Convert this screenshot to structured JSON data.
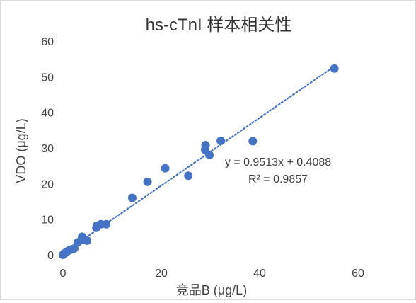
{
  "chart_data": {
    "type": "scatter",
    "title": "hs-cTnI 样本相关性",
    "xlabel": "竞品B (μg/L)",
    "ylabel": "VDO (μg/L)",
    "xlim": [
      0,
      60
    ],
    "ylim": [
      0,
      60
    ],
    "x_ticks": [
      "0",
      "20",
      "40",
      "60"
    ],
    "y_ticks": [
      "0",
      "10",
      "20",
      "30",
      "40",
      "50",
      "60"
    ],
    "grid": false,
    "marker_color": "#4472c4",
    "points": [
      {
        "x": 0.0,
        "y": 0.0
      },
      {
        "x": 0.2,
        "y": 0.3
      },
      {
        "x": 0.4,
        "y": 0.5
      },
      {
        "x": 0.6,
        "y": 0.7
      },
      {
        "x": 0.9,
        "y": 1.0
      },
      {
        "x": 1.3,
        "y": 1.3
      },
      {
        "x": 1.6,
        "y": 1.5
      },
      {
        "x": 2.0,
        "y": 1.6
      },
      {
        "x": 2.3,
        "y": 1.8
      },
      {
        "x": 3.0,
        "y": 3.5
      },
      {
        "x": 3.8,
        "y": 4.2
      },
      {
        "x": 3.9,
        "y": 5.1
      },
      {
        "x": 4.9,
        "y": 4.0
      },
      {
        "x": 6.8,
        "y": 7.6
      },
      {
        "x": 6.9,
        "y": 8.2
      },
      {
        "x": 7.7,
        "y": 8.6
      },
      {
        "x": 8.8,
        "y": 8.6
      },
      {
        "x": 14.1,
        "y": 16.0
      },
      {
        "x": 17.2,
        "y": 20.5
      },
      {
        "x": 20.8,
        "y": 24.3
      },
      {
        "x": 25.5,
        "y": 22.2
      },
      {
        "x": 28.9,
        "y": 29.5
      },
      {
        "x": 29.0,
        "y": 30.8
      },
      {
        "x": 29.8,
        "y": 28.0
      },
      {
        "x": 32.1,
        "y": 32.0
      },
      {
        "x": 38.6,
        "y": 31.9
      },
      {
        "x": 55.2,
        "y": 52.3
      }
    ],
    "trendline": {
      "type": "linear",
      "slope": 0.9513,
      "intercept": 0.4088,
      "x_range": [
        0,
        55.2
      ],
      "color": "#4472c4",
      "style": "dotted",
      "equation_label": "y = 0.9513x + 0.4088",
      "r2_label": "R² = 0.9857"
    }
  }
}
